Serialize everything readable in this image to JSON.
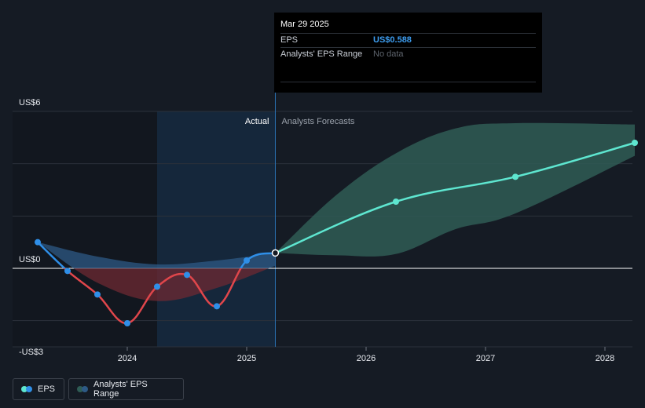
{
  "chart_data": {
    "type": "line",
    "y_unit": "US$",
    "y_ticks": [
      {
        "value": 6,
        "label": "US$6"
      },
      {
        "value": 0,
        "label": "US$0"
      },
      {
        "value": -3,
        "label": "-US$3"
      }
    ],
    "ylim": [
      -3,
      6
    ],
    "x_ticks": [
      {
        "value": 2024,
        "label": "2024"
      },
      {
        "value": 2025,
        "label": "2025"
      },
      {
        "value": 2026,
        "label": "2026"
      },
      {
        "value": 2027,
        "label": "2027"
      },
      {
        "value": 2028,
        "label": "2028"
      }
    ],
    "xlim": [
      2023.0,
      2028.25
    ],
    "section_labels": {
      "actual": "Actual",
      "forecast": "Analysts Forecasts"
    },
    "forecast_start": 2025.24,
    "highlight_start": 2024.25,
    "series": [
      {
        "name": "EPS",
        "kind": "actual",
        "points": [
          {
            "x": 2023.25,
            "y": 1.0
          },
          {
            "x": 2023.5,
            "y": -0.1
          },
          {
            "x": 2023.75,
            "y": -1.0
          },
          {
            "x": 2024.0,
            "y": -2.1
          },
          {
            "x": 2024.25,
            "y": -0.7
          },
          {
            "x": 2024.5,
            "y": -0.25
          },
          {
            "x": 2024.75,
            "y": -1.45
          },
          {
            "x": 2025.0,
            "y": 0.3
          },
          {
            "x": 2025.24,
            "y": 0.588
          }
        ]
      },
      {
        "name": "EPS",
        "kind": "forecast",
        "points": [
          {
            "x": 2025.24,
            "y": 0.588
          },
          {
            "x": 2026.25,
            "y": 2.55
          },
          {
            "x": 2027.25,
            "y": 3.5
          },
          {
            "x": 2028.25,
            "y": 4.8
          }
        ]
      }
    ],
    "range_actual": {
      "upper": [
        {
          "x": 2023.25,
          "y": 1.0
        },
        {
          "x": 2023.75,
          "y": 0.45
        },
        {
          "x": 2024.25,
          "y": 0.15
        },
        {
          "x": 2024.75,
          "y": 0.3
        },
        {
          "x": 2025.24,
          "y": 0.588
        }
      ],
      "lower": [
        {
          "x": 2023.25,
          "y": 1.0
        },
        {
          "x": 2023.75,
          "y": -0.55
        },
        {
          "x": 2024.25,
          "y": -1.25
        },
        {
          "x": 2024.75,
          "y": -0.75
        },
        {
          "x": 2025.24,
          "y": 0.1
        }
      ]
    },
    "range_forecast": {
      "upper": [
        {
          "x": 2025.24,
          "y": 0.588
        },
        {
          "x": 2025.75,
          "y": 2.8
        },
        {
          "x": 2026.25,
          "y": 4.4
        },
        {
          "x": 2026.75,
          "y": 5.35
        },
        {
          "x": 2027.25,
          "y": 5.55
        },
        {
          "x": 2028.25,
          "y": 5.5
        }
      ],
      "lower": [
        {
          "x": 2025.24,
          "y": 0.588
        },
        {
          "x": 2025.75,
          "y": 0.5
        },
        {
          "x": 2026.25,
          "y": 0.55
        },
        {
          "x": 2026.75,
          "y": 1.5
        },
        {
          "x": 2027.25,
          "y": 2.1
        },
        {
          "x": 2028.25,
          "y": 4.3
        }
      ]
    },
    "colors": {
      "eps_actual_positive": "#2f8fe8",
      "eps_actual_negative": "#e0464b",
      "eps_forecast": "#5ee6d0",
      "range_actual_positive": "#2d5a86",
      "range_actual_negative": "#6e2a33",
      "range_forecast": "#2f5c55",
      "highlight": "#15273b",
      "grid": "#2b313b",
      "zero_line": "#ffffff"
    },
    "grid": true,
    "legend_position": "bottom-left"
  },
  "tooltip": {
    "title": "Mar 29 2025",
    "rows": [
      {
        "key": "EPS",
        "value": "US$0.588"
      },
      {
        "key": "Analysts' EPS Range",
        "value": "No data"
      }
    ]
  },
  "legend": {
    "eps_label": "EPS",
    "range_label": "Analysts' EPS Range",
    "eps_colors": [
      "#5ee6d0",
      "#2f8fe8"
    ],
    "range_colors": [
      "#2f5c55",
      "#2d5a86"
    ]
  }
}
